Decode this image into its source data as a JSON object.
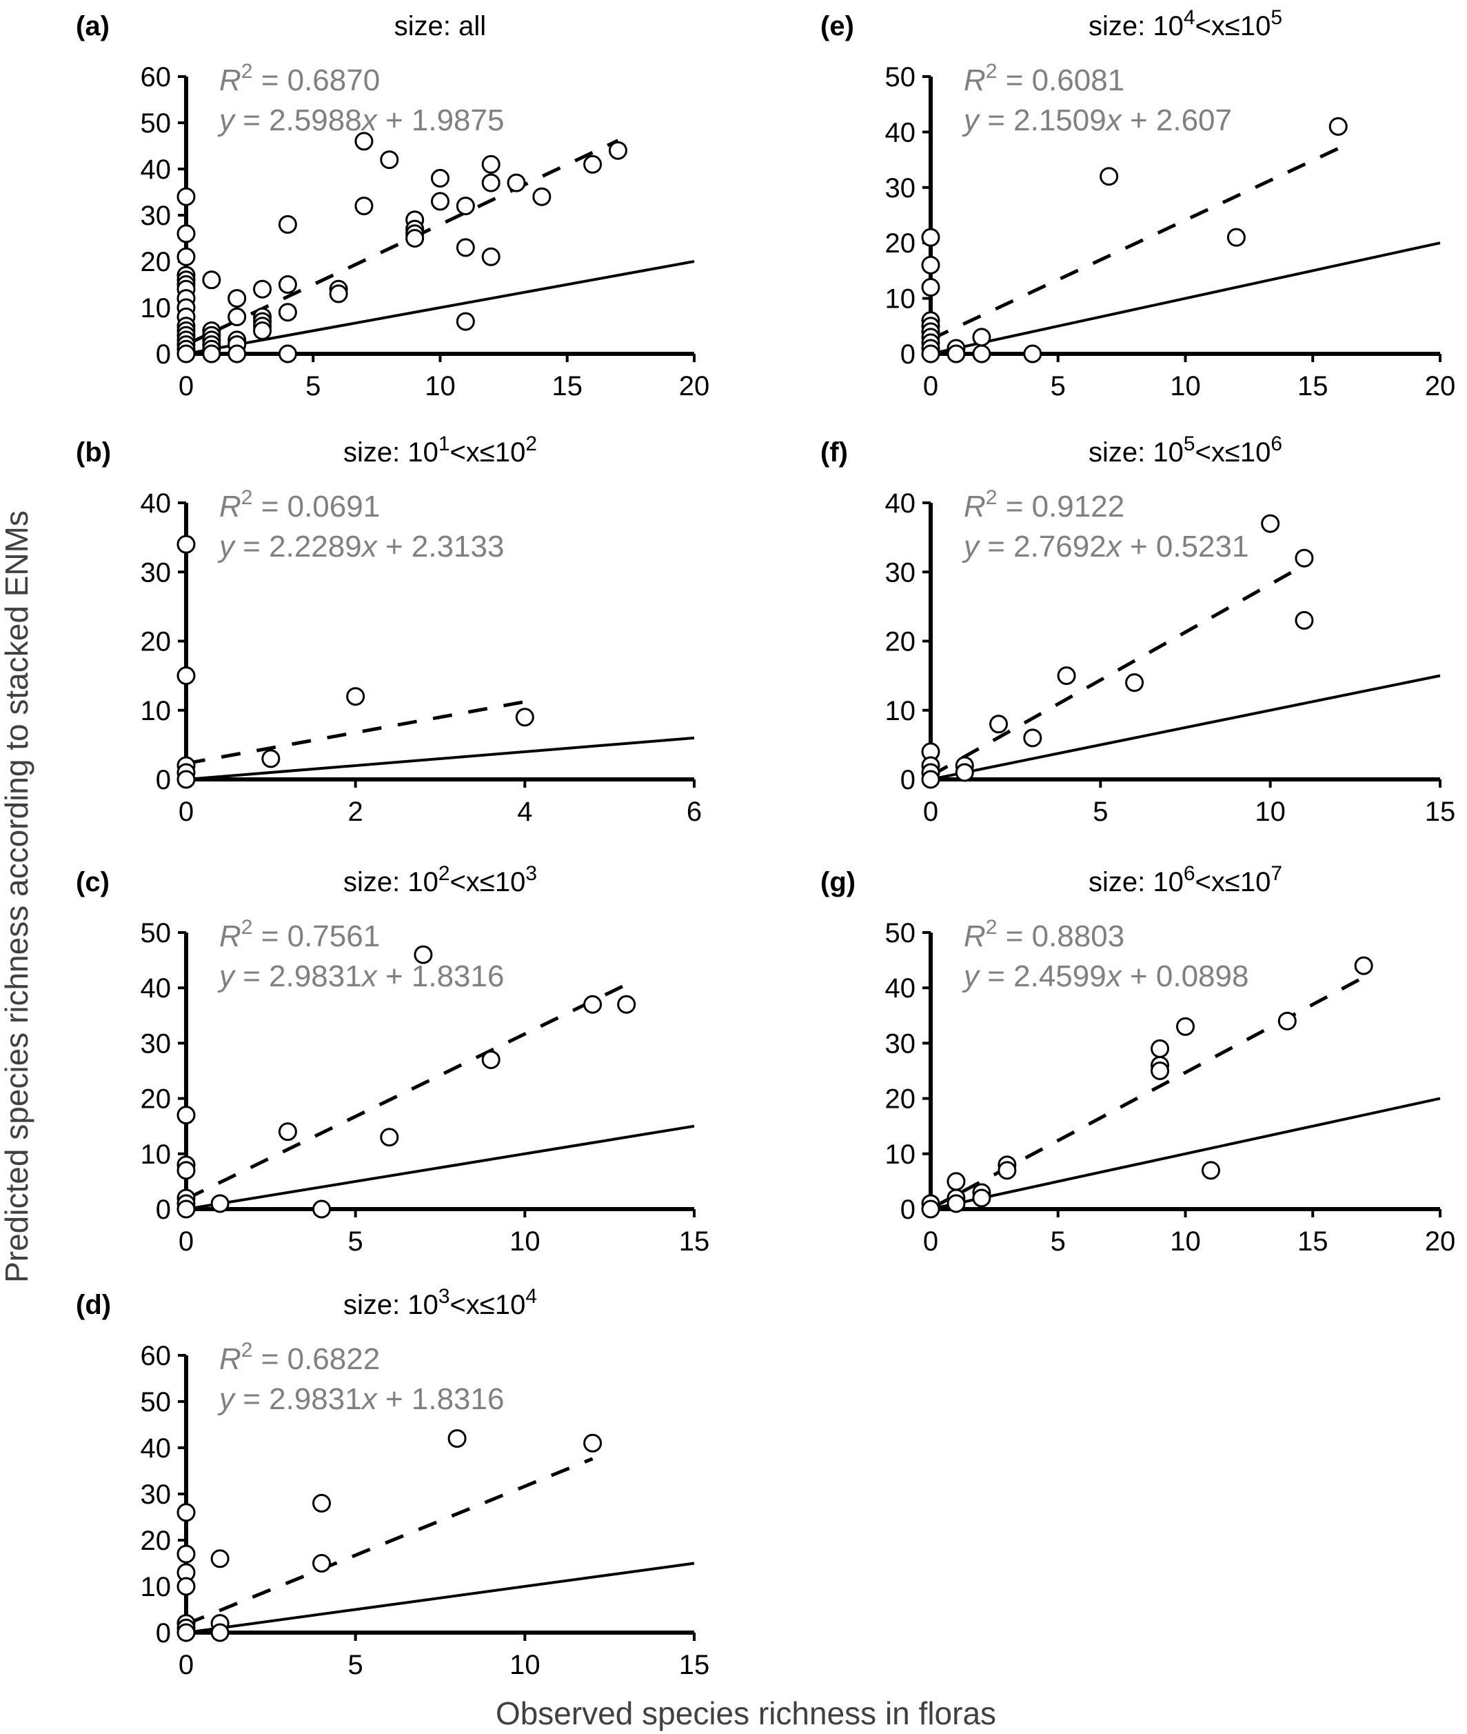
{
  "figure": {
    "xlabel": "Observed species richness in floras",
    "ylabel": "Predicted species richness according to stacked ENMs"
  },
  "chart_data": [
    {
      "id": "a",
      "label": "(a)",
      "type": "scatter",
      "title": {
        "prefix": "size: all"
      },
      "r2_label": "R",
      "r2_sup": "2",
      "r2_value": " = 0.6870",
      "eq_label": "y",
      "eq_value": " = 2.5988",
      "eq_x": "x",
      "eq_rest": " + 1.9875",
      "xlim": [
        0,
        20
      ],
      "ylim": [
        0,
        60
      ],
      "xticks": [
        0,
        5,
        10,
        15,
        20
      ],
      "yticks": [
        0,
        10,
        20,
        30,
        40,
        50,
        60
      ],
      "fit": {
        "slope": 2.5988,
        "intercept": 1.9875,
        "x_range": [
          0,
          17
        ]
      },
      "identity_line": true,
      "points": [
        [
          0,
          34
        ],
        [
          0,
          26
        ],
        [
          0,
          21
        ],
        [
          0,
          17
        ],
        [
          0,
          16
        ],
        [
          0,
          15
        ],
        [
          0,
          14
        ],
        [
          0,
          12
        ],
        [
          0,
          10
        ],
        [
          0,
          8
        ],
        [
          0,
          6
        ],
        [
          0,
          5
        ],
        [
          0,
          4
        ],
        [
          0,
          3
        ],
        [
          0,
          2
        ],
        [
          0,
          1
        ],
        [
          0,
          0
        ],
        [
          1,
          16
        ],
        [
          1,
          5
        ],
        [
          1,
          4
        ],
        [
          1,
          3
        ],
        [
          1,
          2
        ],
        [
          1,
          1
        ],
        [
          1,
          0
        ],
        [
          2,
          12
        ],
        [
          2,
          8
        ],
        [
          2,
          3
        ],
        [
          2,
          2
        ],
        [
          2,
          0
        ],
        [
          3,
          14
        ],
        [
          3,
          8
        ],
        [
          3,
          7
        ],
        [
          3,
          6
        ],
        [
          3,
          5
        ],
        [
          4,
          28
        ],
        [
          4,
          15
        ],
        [
          4,
          9
        ],
        [
          4,
          0
        ],
        [
          6,
          14
        ],
        [
          6,
          13
        ],
        [
          7,
          46
        ],
        [
          7,
          32
        ],
        [
          8,
          42
        ],
        [
          9,
          29
        ],
        [
          9,
          27
        ],
        [
          9,
          26
        ],
        [
          9,
          25
        ],
        [
          10,
          38
        ],
        [
          10,
          33
        ],
        [
          11,
          32
        ],
        [
          11,
          23
        ],
        [
          11,
          7
        ],
        [
          12,
          41
        ],
        [
          12,
          37
        ],
        [
          12,
          21
        ],
        [
          13,
          37
        ],
        [
          14,
          34
        ],
        [
          16,
          41
        ],
        [
          17,
          44
        ]
      ]
    },
    {
      "id": "b",
      "label": "(b)",
      "type": "scatter",
      "title": {
        "prefix": "size: 10",
        "sup1": "1",
        "mid": "<x≤10",
        "sup2": "2"
      },
      "r2_label": "R",
      "r2_sup": "2",
      "r2_value": " = 0.0691",
      "eq_label": "y",
      "eq_value": " = 2.2289",
      "eq_x": "x",
      "eq_rest": " + 2.3133",
      "xlim": [
        0,
        6
      ],
      "ylim": [
        0,
        40
      ],
      "xticks": [
        0,
        2,
        4,
        6
      ],
      "yticks": [
        0,
        10,
        20,
        30,
        40
      ],
      "fit": {
        "slope": 2.2289,
        "intercept": 2.3133,
        "x_range": [
          0,
          4
        ]
      },
      "identity_line": true,
      "points": [
        [
          0,
          34
        ],
        [
          0,
          15
        ],
        [
          0,
          2
        ],
        [
          0,
          1
        ],
        [
          0,
          0
        ],
        [
          1,
          3
        ],
        [
          2,
          12
        ],
        [
          4,
          9
        ]
      ]
    },
    {
      "id": "c",
      "label": "(c)",
      "type": "scatter",
      "title": {
        "prefix": "size: 10",
        "sup1": "2",
        "mid": "<x≤10",
        "sup2": "3"
      },
      "r2_label": "R",
      "r2_sup": "2",
      "r2_value": " = 0.7561",
      "eq_label": "y",
      "eq_value": " = 2.9831",
      "eq_x": "x",
      "eq_rest": " + 1.8316",
      "xlim": [
        0,
        15
      ],
      "ylim": [
        0,
        50
      ],
      "xticks": [
        0,
        5,
        10,
        15
      ],
      "yticks": [
        0,
        10,
        20,
        30,
        40,
        50
      ],
      "fit": {
        "slope": 2.9831,
        "intercept": 1.8316,
        "x_range": [
          0,
          13
        ]
      },
      "identity_line": true,
      "points": [
        [
          0,
          17
        ],
        [
          0,
          8
        ],
        [
          0,
          7
        ],
        [
          0,
          2
        ],
        [
          0,
          1
        ],
        [
          0,
          0
        ],
        [
          1,
          1
        ],
        [
          3,
          14
        ],
        [
          4,
          0
        ],
        [
          6,
          13
        ],
        [
          7,
          46
        ],
        [
          9,
          27
        ],
        [
          12,
          37
        ],
        [
          13,
          37
        ]
      ]
    },
    {
      "id": "d",
      "label": "(d)",
      "type": "scatter",
      "title": {
        "prefix": "size: 10",
        "sup1": "3",
        "mid": "<x≤10",
        "sup2": "4"
      },
      "r2_label": "R",
      "r2_sup": "2",
      "r2_value": " = 0.6822",
      "eq_label": "y",
      "eq_value": " = 2.9831",
      "eq_x": "x",
      "eq_rest": " + 1.8316",
      "xlim": [
        0,
        15
      ],
      "ylim": [
        0,
        60
      ],
      "xticks": [
        0,
        5,
        10,
        15
      ],
      "yticks": [
        0,
        10,
        20,
        30,
        40,
        50,
        60
      ],
      "fit": {
        "slope": 2.9831,
        "intercept": 1.8316,
        "x_range": [
          0,
          12
        ]
      },
      "identity_line": true,
      "points": [
        [
          0,
          26
        ],
        [
          0,
          17
        ],
        [
          0,
          13
        ],
        [
          0,
          10
        ],
        [
          0,
          2
        ],
        [
          0,
          1
        ],
        [
          0,
          0
        ],
        [
          1,
          16
        ],
        [
          1,
          2
        ],
        [
          1,
          0
        ],
        [
          4,
          28
        ],
        [
          4,
          15
        ],
        [
          8,
          42
        ],
        [
          12,
          41
        ]
      ]
    },
    {
      "id": "e",
      "label": "(e)",
      "type": "scatter",
      "title": {
        "prefix": "size: 10",
        "sup1": "4",
        "mid": "<x≤10",
        "sup2": "5"
      },
      "r2_label": "R",
      "r2_sup": "2",
      "r2_value": " = 0.6081",
      "eq_label": "y",
      "eq_value": " = 2.1509",
      "eq_x": "x",
      "eq_rest": " + 2.607",
      "xlim": [
        0,
        20
      ],
      "ylim": [
        0,
        50
      ],
      "xticks": [
        0,
        5,
        10,
        15,
        20
      ],
      "yticks": [
        0,
        10,
        20,
        30,
        40,
        50
      ],
      "fit": {
        "slope": 2.1509,
        "intercept": 2.607,
        "x_range": [
          0,
          16
        ]
      },
      "identity_line": true,
      "points": [
        [
          0,
          21
        ],
        [
          0,
          16
        ],
        [
          0,
          12
        ],
        [
          0,
          6
        ],
        [
          0,
          5
        ],
        [
          0,
          4
        ],
        [
          0,
          3
        ],
        [
          0,
          2
        ],
        [
          0,
          1
        ],
        [
          0,
          0
        ],
        [
          1,
          1
        ],
        [
          1,
          0
        ],
        [
          2,
          3
        ],
        [
          2,
          0
        ],
        [
          4,
          0
        ],
        [
          7,
          32
        ],
        [
          12,
          21
        ],
        [
          16,
          41
        ]
      ]
    },
    {
      "id": "f",
      "label": "(f)",
      "type": "scatter",
      "title": {
        "prefix": "size: 10",
        "sup1": "5",
        "mid": "<x≤10",
        "sup2": "6"
      },
      "r2_label": "R",
      "r2_sup": "2",
      "r2_value": " = 0.9122",
      "eq_label": "y",
      "eq_value": " = 2.7692",
      "eq_x": "x",
      "eq_rest": " + 0.5231",
      "xlim": [
        0,
        15
      ],
      "ylim": [
        0,
        40
      ],
      "xticks": [
        0,
        5,
        10,
        15
      ],
      "yticks": [
        0,
        10,
        20,
        30,
        40
      ],
      "fit": {
        "slope": 2.7692,
        "intercept": 0.5231,
        "x_range": [
          0,
          11
        ]
      },
      "identity_line": true,
      "points": [
        [
          0,
          4
        ],
        [
          0,
          2
        ],
        [
          0,
          1
        ],
        [
          0,
          0
        ],
        [
          1,
          2
        ],
        [
          1,
          1
        ],
        [
          2,
          8
        ],
        [
          3,
          6
        ],
        [
          4,
          15
        ],
        [
          6,
          14
        ],
        [
          10,
          37
        ],
        [
          11,
          32
        ],
        [
          11,
          23
        ]
      ]
    },
    {
      "id": "g",
      "label": "(g)",
      "type": "scatter",
      "title": {
        "prefix": "size: 10",
        "sup1": "6",
        "mid": "<x≤10",
        "sup2": "7"
      },
      "r2_label": "R",
      "r2_sup": "2",
      "r2_value": " = 0.8803",
      "eq_label": "y",
      "eq_value": " = 2.4599",
      "eq_x": "x",
      "eq_rest": " + 0.0898",
      "xlim": [
        0,
        20
      ],
      "ylim": [
        0,
        50
      ],
      "xticks": [
        0,
        5,
        10,
        15,
        20
      ],
      "yticks": [
        0,
        10,
        20,
        30,
        40,
        50
      ],
      "fit": {
        "slope": 2.4599,
        "intercept": 0.0898,
        "x_range": [
          0,
          17
        ]
      },
      "identity_line": true,
      "points": [
        [
          0,
          1
        ],
        [
          0,
          0
        ],
        [
          1,
          5
        ],
        [
          1,
          2
        ],
        [
          1,
          1
        ],
        [
          2,
          3
        ],
        [
          2,
          2
        ],
        [
          3,
          8
        ],
        [
          3,
          7
        ],
        [
          9,
          29
        ],
        [
          9,
          26
        ],
        [
          9,
          25
        ],
        [
          10,
          33
        ],
        [
          11,
          7
        ],
        [
          14,
          34
        ],
        [
          17,
          44
        ]
      ]
    }
  ]
}
